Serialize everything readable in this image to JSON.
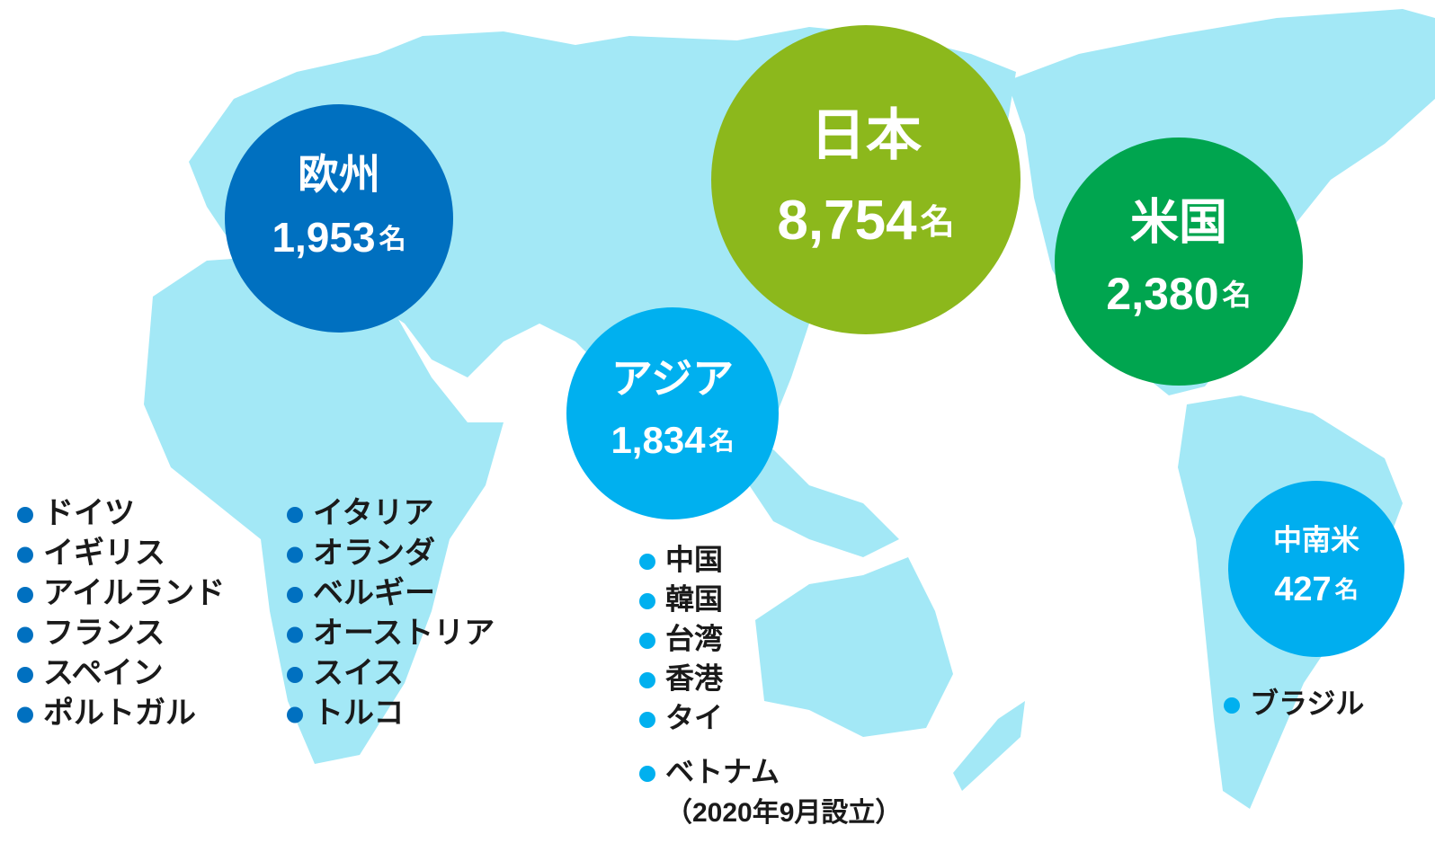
{
  "regions": [
    {
      "name": "欧州",
      "count": "1,953",
      "unit": "名",
      "color": "#0070c0",
      "countries": [
        "ドイツ",
        "イギリス",
        "アイルランド",
        "フランス",
        "スペイン",
        "ポルトガル",
        "イタリア",
        "オランダ",
        "ベルギー",
        "オーストリア",
        "スイス",
        "トルコ"
      ]
    },
    {
      "name": "日本",
      "count": "8,754",
      "unit": "名",
      "color": "#8cb81c",
      "countries": []
    },
    {
      "name": "米国",
      "count": "2,380",
      "unit": "名",
      "color": "#00a54f",
      "countries": []
    },
    {
      "name": "アジア",
      "count": "1,834",
      "unit": "名",
      "color": "#00b0ef",
      "countries": [
        "中国",
        "韓国",
        "台湾",
        "香港",
        "タイ",
        "ベトナム"
      ],
      "note": "（2020年9月設立）"
    },
    {
      "name": "中南米",
      "count": "427",
      "unit": "名",
      "color": "#00aeef",
      "countries": [
        "ブラジル"
      ]
    }
  ]
}
